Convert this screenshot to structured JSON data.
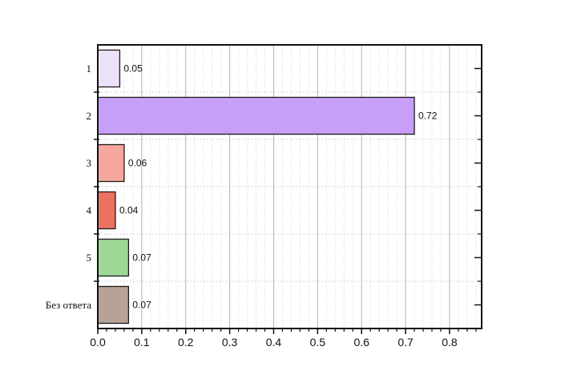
{
  "page": {
    "background": "#ffffff"
  },
  "chart_data": {
    "type": "bar",
    "orientation": "horizontal",
    "title": "",
    "xlabel": "",
    "ylabel": "",
    "legend": "none",
    "categories": [
      "1",
      "2",
      "3",
      "4",
      "5",
      "Без ответа"
    ],
    "values": [
      0.05,
      0.72,
      0.06,
      0.04,
      0.07,
      0.07
    ],
    "value_labels": [
      "0.05",
      "0.72",
      "0.06",
      "0.04",
      "0.07",
      "0.07"
    ],
    "bar_fill_colors": [
      "#ede1fa",
      "#c89ff8",
      "#f5a79e",
      "#ec7160",
      "#9dd896",
      "#b7a396"
    ],
    "bar_border_color": "#1c1c1c",
    "xlim": [
      0,
      0.873
    ],
    "x_major_ticks": [
      0,
      0.1,
      0.2,
      0.3,
      0.4,
      0.5,
      0.6,
      0.7,
      0.8
    ],
    "x_tick_labels": [
      "0.0",
      "0.1",
      "0.2",
      "0.3",
      "0.4",
      "0.5",
      "0.6",
      "0.7",
      "0.8"
    ],
    "x_minor_step": 0.02,
    "grid": {
      "show_major_x": true,
      "show_minor_x": true,
      "show_band_separators": true,
      "major_color": "#b3b3b3",
      "minor_color": "#dcdcdc",
      "separator_color": "#c9c9c9"
    },
    "frame_color": "#111111",
    "tick_color": "#111111",
    "text_color": "#111111"
  }
}
